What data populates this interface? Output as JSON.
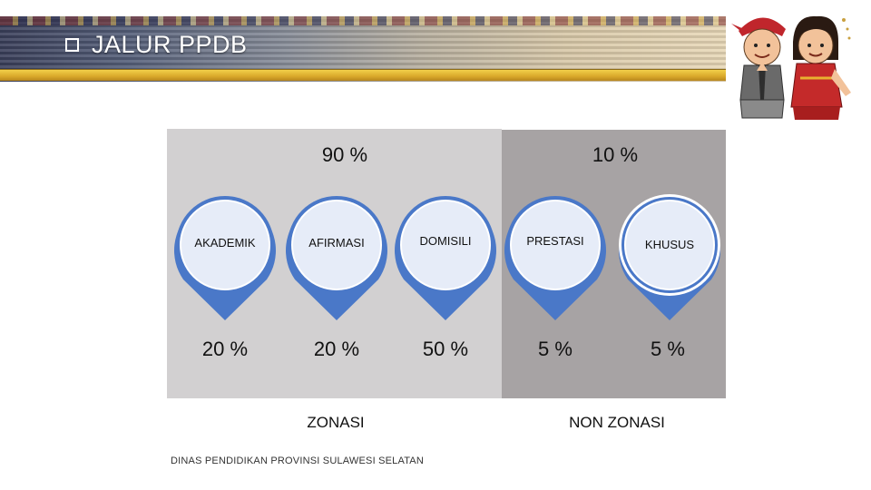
{
  "header": {
    "title": "JALUR PPDB",
    "bullet_icon": "checkbox-square-icon"
  },
  "mascot": {
    "icon": "two-children-traditional-costume-illustration"
  },
  "groups": {
    "zonasi": {
      "percent": "90 %",
      "label": "ZONASI"
    },
    "non_zonasi": {
      "percent": "10 %",
      "label": "NON ZONASI"
    }
  },
  "pins": [
    {
      "label": "AKADEMIK",
      "value": "20 %"
    },
    {
      "label": "AFIRMASI",
      "value": "20 %"
    },
    {
      "label": "DOMISILI",
      "value": "50 %"
    },
    {
      "label": "PRESTASI",
      "value": "5 %"
    },
    {
      "label": "KHUSUS",
      "value": "5 %"
    }
  ],
  "footer": {
    "text": "DINAS PENDIDIKAN PROVINSI SULAWESI SELATAN"
  },
  "colors": {
    "pin_fill": "#4a78c8",
    "pin_light": "#e6ecf8",
    "zonasi_bg": "#d2d0d1",
    "non_zonasi_bg": "#a7a3a4",
    "banner_gold": "#e0b030"
  }
}
